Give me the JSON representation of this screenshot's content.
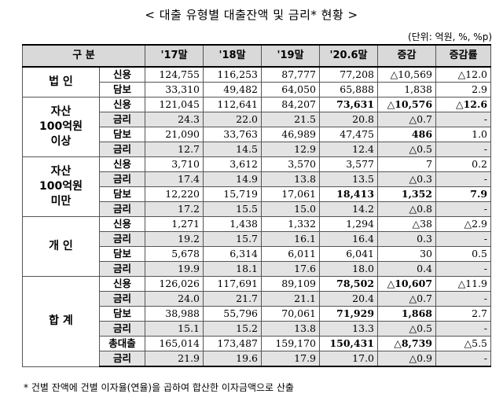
{
  "title": "< 대출 유형별 대출잔액 및 금리* 현황 >",
  "unit": "(단위: 억원, %, %p)",
  "header": {
    "category": "구   분",
    "cols": [
      "'17말",
      "'18말",
      "'19말",
      "'20.6말",
      "증감",
      "증감률"
    ]
  },
  "groups": [
    {
      "name": "법 인",
      "rows": [
        {
          "label": "신용",
          "values": [
            "124,755",
            "116,253",
            "87,777",
            "77,208",
            "△10,569",
            "△12.0"
          ],
          "bold": [],
          "rate": false
        },
        {
          "label": "담보",
          "values": [
            "33,310",
            "49,482",
            "64,050",
            "65,888",
            "1,838",
            "2.9"
          ],
          "bold": [],
          "rate": false
        }
      ]
    },
    {
      "name": "자산\n100억원\n이상",
      "rows": [
        {
          "label": "신용",
          "values": [
            "121,045",
            "112,641",
            "84,207",
            "73,631",
            "△10,576",
            "△12.6"
          ],
          "bold": [
            3,
            4,
            5
          ],
          "rate": false
        },
        {
          "label": "금리",
          "values": [
            "24.3",
            "22.0",
            "21.5",
            "20.8",
            "△0.7",
            "-"
          ],
          "bold": [],
          "rate": true
        },
        {
          "label": "담보",
          "values": [
            "21,090",
            "33,763",
            "46,989",
            "47,475",
            "486",
            "1.0"
          ],
          "bold": [
            4
          ],
          "rate": false
        },
        {
          "label": "금리",
          "values": [
            "12.7",
            "14.5",
            "12.9",
            "12.4",
            "△0.5",
            "-"
          ],
          "bold": [],
          "rate": true
        }
      ]
    },
    {
      "name": "자산\n100억원\n미만",
      "rows": [
        {
          "label": "신용",
          "values": [
            "3,710",
            "3,612",
            "3,570",
            "3,577",
            "7",
            "0.2"
          ],
          "bold": [],
          "rate": false
        },
        {
          "label": "금리",
          "values": [
            "17.4",
            "14.9",
            "13.8",
            "13.5",
            "△0.3",
            "-"
          ],
          "bold": [],
          "rate": true
        },
        {
          "label": "담보",
          "values": [
            "12,220",
            "15,719",
            "17,061",
            "18,413",
            "1,352",
            "7.9"
          ],
          "bold": [
            3,
            4,
            5
          ],
          "rate": false
        },
        {
          "label": "금리",
          "values": [
            "17.2",
            "15.5",
            "15.0",
            "14.2",
            "△0.8",
            "-"
          ],
          "bold": [],
          "rate": true
        }
      ]
    },
    {
      "name": "개 인",
      "rows": [
        {
          "label": "신용",
          "values": [
            "1,271",
            "1,438",
            "1,332",
            "1,294",
            "△38",
            "△2.9"
          ],
          "bold": [],
          "rate": false
        },
        {
          "label": "금리",
          "values": [
            "19.2",
            "15.7",
            "16.1",
            "16.4",
            "0.3",
            "-"
          ],
          "bold": [],
          "rate": true
        },
        {
          "label": "담보",
          "values": [
            "5,678",
            "6,314",
            "6,011",
            "6,041",
            "30",
            "0.5"
          ],
          "bold": [],
          "rate": false
        },
        {
          "label": "금리",
          "values": [
            "19.9",
            "18.1",
            "17.6",
            "18.0",
            "0.4",
            "-"
          ],
          "bold": [],
          "rate": true
        }
      ]
    },
    {
      "name": "합 계",
      "rows": [
        {
          "label": "신용",
          "values": [
            "126,026",
            "117,691",
            "89,109",
            "78,502",
            "△10,607",
            "△11.9"
          ],
          "bold": [
            3,
            4
          ],
          "rate": false
        },
        {
          "label": "금리",
          "values": [
            "24.0",
            "21.7",
            "21.1",
            "20.4",
            "△0.7",
            "-"
          ],
          "bold": [],
          "rate": true
        },
        {
          "label": "담보",
          "values": [
            "38,988",
            "55,796",
            "70,061",
            "71,929",
            "1,868",
            "2.7"
          ],
          "bold": [
            3,
            4
          ],
          "rate": false
        },
        {
          "label": "금리",
          "values": [
            "15.1",
            "15.2",
            "13.8",
            "13.3",
            "△0.5",
            "-"
          ],
          "bold": [],
          "rate": true
        },
        {
          "label": "총대출",
          "values": [
            "165,014",
            "173,487",
            "159,170",
            "150,431",
            "△8,739",
            "△5.5"
          ],
          "bold": [
            3,
            4
          ],
          "rate": false
        },
        {
          "label": "금리",
          "values": [
            "21.9",
            "19.6",
            "17.9",
            "17.0",
            "△0.9",
            "-"
          ],
          "bold": [],
          "rate": true
        }
      ]
    }
  ],
  "footnote": "* 건별 잔액에 건별 이자율(연율)을 곱하여 합산한 이자금액으로 산출"
}
